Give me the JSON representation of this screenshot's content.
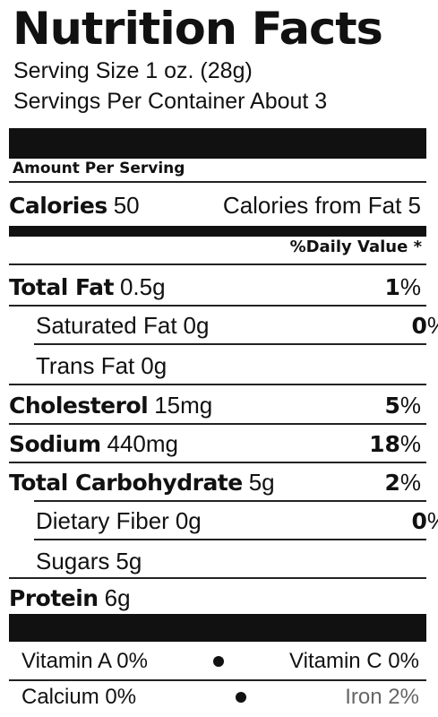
{
  "title": "Nutrition Facts",
  "serving_size": "Serving Size 1 oz. (28g)",
  "servings_per_container": "Servings Per Container About 3",
  "amount_per_serving": "Amount Per Serving",
  "calories": {
    "label": "Calories",
    "value": "50",
    "from_fat": "Calories from Fat 5"
  },
  "daily_value_header": "%Daily Value *",
  "nutrients": {
    "total_fat": {
      "label": "Total Fat",
      "amount": "0.5g",
      "dv_num": "1",
      "dv_sym": "%"
    },
    "saturated_fat": {
      "label": "Saturated Fat",
      "amount": "0g",
      "dv_num": "0",
      "dv_sym": "%"
    },
    "trans_fat": {
      "label": "Trans Fat",
      "amount": "0g"
    },
    "cholesterol": {
      "label": "Cholesterol",
      "amount": "15mg",
      "dv_num": "5",
      "dv_sym": "%"
    },
    "sodium": {
      "label": "Sodium",
      "amount": "440mg",
      "dv_num": "18",
      "dv_sym": "%"
    },
    "total_carbohydrate": {
      "label": "Total Carbohydrate",
      "amount": "5g",
      "dv_num": "2",
      "dv_sym": "%"
    },
    "dietary_fiber": {
      "label": "Dietary Fiber",
      "amount": "0g",
      "dv_num": "0",
      "dv_sym": "%"
    },
    "sugars": {
      "label": "Sugars",
      "amount": "5g"
    },
    "protein": {
      "label": "Protein",
      "amount": "6g"
    }
  },
  "vitamins": {
    "vitamin_a": "Vitamin A 0%",
    "vitamin_c": "Vitamin C 0%",
    "calcium": "Calcium 0%",
    "iron": "Iron 2%"
  }
}
